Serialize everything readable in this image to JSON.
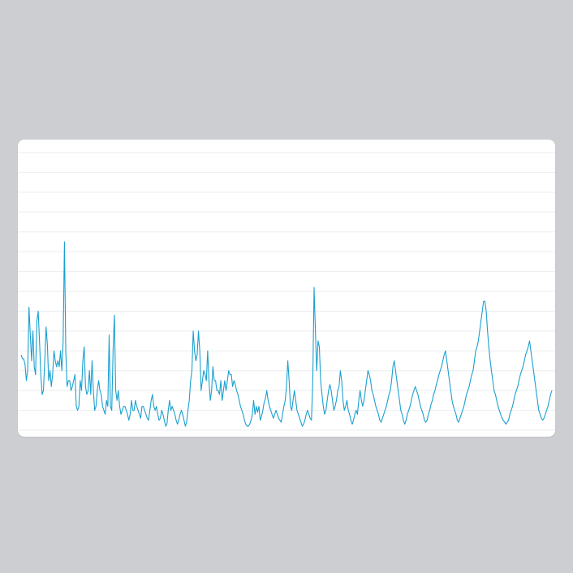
{
  "chart_data": {
    "type": "line",
    "title": "",
    "xlabel": "",
    "ylabel": "",
    "grid": true,
    "legend": "none",
    "ylim": [
      0,
      14
    ],
    "gridline_count": 14,
    "series": [
      {
        "color": "#1aa0d0",
        "values": [
          3.8,
          3.6,
          3.6,
          3.3,
          2.5,
          3.0,
          6.2,
          4.8,
          3.5,
          5.0,
          3.2,
          2.8,
          5.5,
          6.0,
          4.5,
          2.8,
          1.8,
          2.0,
          3.5,
          5.2,
          4.3,
          2.5,
          3.0,
          2.2,
          2.8,
          4.0,
          3.5,
          3.2,
          3.5,
          3.2,
          4.0,
          3.0,
          4.5,
          9.5,
          4.0,
          2.2,
          2.5,
          2.5,
          2.0,
          2.2,
          2.5,
          2.8,
          1.2,
          1.0,
          1.2,
          2.5,
          2.0,
          3.5,
          4.2,
          2.2,
          1.8,
          2.0,
          3.0,
          1.8,
          3.5,
          2.0,
          1.0,
          1.2,
          2.0,
          2.5,
          2.0,
          1.8,
          1.2,
          1.0,
          0.8,
          1.5,
          1.2,
          4.8,
          1.2,
          1.0,
          4.0,
          5.8,
          2.0,
          1.5,
          2.0,
          1.2,
          0.8,
          1.0,
          1.2,
          1.2,
          1.0,
          0.8,
          0.5,
          0.8,
          1.5,
          1.0,
          1.0,
          1.5,
          1.2,
          1.0,
          0.8,
          0.6,
          1.2,
          1.2,
          1.0,
          0.8,
          0.6,
          0.5,
          1.0,
          1.5,
          1.8,
          1.2,
          1.0,
          1.2,
          0.8,
          0.5,
          0.6,
          1.0,
          0.8,
          0.5,
          0.2,
          0.3,
          1.0,
          1.5,
          1.0,
          1.2,
          1.0,
          0.8,
          0.5,
          0.3,
          0.5,
          0.8,
          1.0,
          0.8,
          0.5,
          0.2,
          0.4,
          1.0,
          1.5,
          2.5,
          3.0,
          5.0,
          4.0,
          3.5,
          3.8,
          5.0,
          4.0,
          2.0,
          2.5,
          3.0,
          2.8,
          2.5,
          4.0,
          2.5,
          1.5,
          2.0,
          3.2,
          2.5,
          2.5,
          2.0,
          2.0,
          1.8,
          2.5,
          1.5,
          2.0,
          2.5,
          2.0,
          2.5,
          3.0,
          2.8,
          2.8,
          2.2,
          2.5,
          2.3,
          2.0,
          1.8,
          1.5,
          1.2,
          1.0,
          0.8,
          0.5,
          0.3,
          0.2,
          0.2,
          0.3,
          0.5,
          0.8,
          1.5,
          0.8,
          1.2,
          0.9,
          1.2,
          0.5,
          0.7,
          1.0,
          1.4,
          1.6,
          2.0,
          1.5,
          1.2,
          1.0,
          0.8,
          0.6,
          0.8,
          1.0,
          0.8,
          0.6,
          0.5,
          0.4,
          0.8,
          1.2,
          1.5,
          2.2,
          3.5,
          2.5,
          1.2,
          1.0,
          1.5,
          2.0,
          1.5,
          1.0,
          0.8,
          0.6,
          0.4,
          0.2,
          0.3,
          0.5,
          0.8,
          1.0,
          0.8,
          0.6,
          0.5,
          2.5,
          7.2,
          5.0,
          3.0,
          4.5,
          4.2,
          2.5,
          1.8,
          1.2,
          0.8,
          1.0,
          1.5,
          2.0,
          2.3,
          2.0,
          1.5,
          1.0,
          1.2,
          1.5,
          2.0,
          2.2,
          3.0,
          2.5,
          1.5,
          1.0,
          1.2,
          1.5,
          1.0,
          0.8,
          0.5,
          0.3,
          0.5,
          0.8,
          1.0,
          0.8,
          1.5,
          2.0,
          1.5,
          1.2,
          1.5,
          2.0,
          2.5,
          3.0,
          2.8,
          2.5,
          2.0,
          1.8,
          1.5,
          1.2,
          1.0,
          0.8,
          0.5,
          0.4,
          0.6,
          0.8,
          1.0,
          1.2,
          1.5,
          1.8,
          2.0,
          2.5,
          3.2,
          3.5,
          3.0,
          2.5,
          2.0,
          1.5,
          1.0,
          0.8,
          0.5,
          0.3,
          0.5,
          0.8,
          1.0,
          1.2,
          1.5,
          1.8,
          2.0,
          2.2,
          2.0,
          1.8,
          1.5,
          1.2,
          1.0,
          0.8,
          0.5,
          0.4,
          0.5,
          0.8,
          1.0,
          1.3,
          1.5,
          1.8,
          2.0,
          2.3,
          2.5,
          2.8,
          3.0,
          3.2,
          3.5,
          3.8,
          4.0,
          3.5,
          3.0,
          2.5,
          2.0,
          1.5,
          1.2,
          1.0,
          0.8,
          0.5,
          0.4,
          0.6,
          0.8,
          1.0,
          1.2,
          1.5,
          1.8,
          2.0,
          2.2,
          2.5,
          2.8,
          3.0,
          3.5,
          4.0,
          4.2,
          4.5,
          5.0,
          5.5,
          6.0,
          6.5,
          6.5,
          6.0,
          5.0,
          4.2,
          3.5,
          3.0,
          2.5,
          2.0,
          1.8,
          1.5,
          1.2,
          1.0,
          0.8,
          0.6,
          0.5,
          0.4,
          0.3,
          0.4,
          0.5,
          0.8,
          1.0,
          1.2,
          1.5,
          1.8,
          2.0,
          2.2,
          2.5,
          2.8,
          3.0,
          3.2,
          3.5,
          3.8,
          4.0,
          4.2,
          4.5,
          4.0,
          3.5,
          3.0,
          2.5,
          2.0,
          1.5,
          1.0,
          0.8,
          0.6,
          0.5,
          0.6,
          0.8,
          1.0,
          1.2,
          1.5,
          1.8,
          2.0
        ]
      }
    ]
  }
}
